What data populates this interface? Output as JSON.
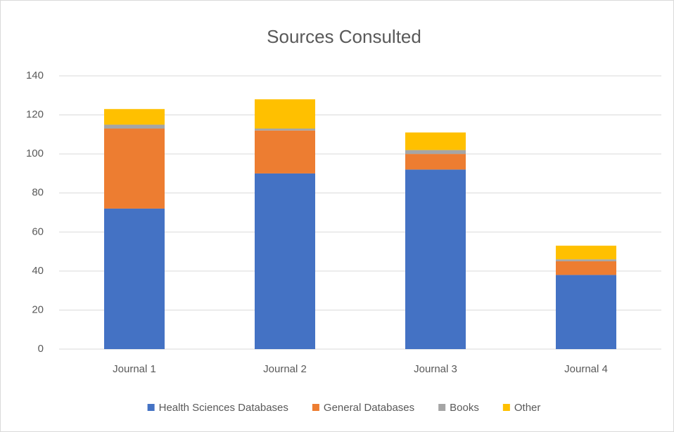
{
  "chart_data": {
    "type": "stacked_bar",
    "title": "Sources Consulted",
    "categories": [
      "Journal 1",
      "Journal 2",
      "Journal 3",
      "Journal 4"
    ],
    "series": [
      {
        "name": "Health Sciences Databases",
        "color": "#4472c4",
        "values": [
          72,
          90,
          92,
          38
        ]
      },
      {
        "name": "General Databases",
        "color": "#ed7d31",
        "values": [
          41,
          22,
          8,
          7
        ]
      },
      {
        "name": "Books",
        "color": "#a5a5a5",
        "values": [
          2,
          1,
          2,
          1
        ]
      },
      {
        "name": "Other",
        "color": "#ffc000",
        "values": [
          8,
          15,
          9,
          7
        ]
      }
    ],
    "ylim": [
      0,
      140
    ],
    "yticks": [
      0,
      20,
      40,
      60,
      80,
      100,
      120,
      140
    ],
    "grid": true,
    "legend": "bottom"
  }
}
